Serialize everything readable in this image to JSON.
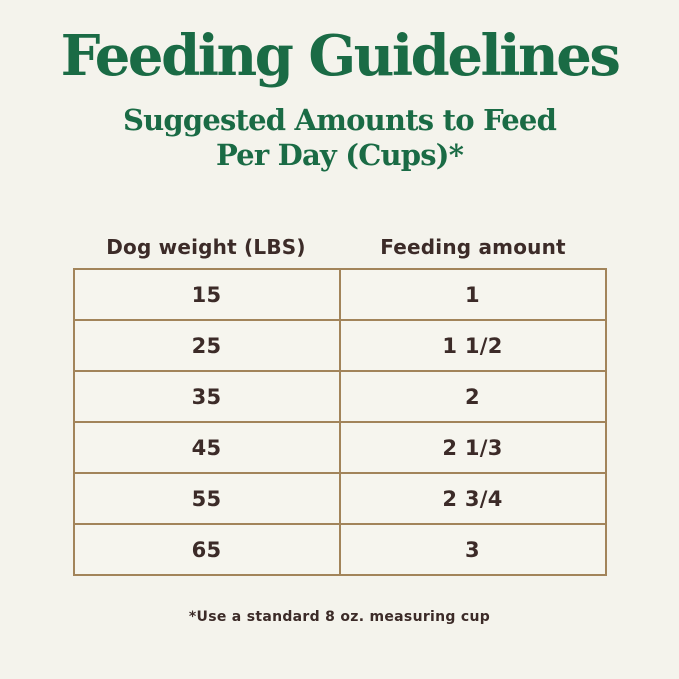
{
  "page": {
    "title": "Feeding Guidelines",
    "subtitle_lines": [
      "Suggested Amounts to Feed",
      "Per Day (Cups)*"
    ],
    "footnote": "*Use a standard 8 oz. measuring cup"
  },
  "chart_data": {
    "type": "table",
    "title": "Feeding Guidelines",
    "subtitle": "Suggested Amounts to Feed Per Day (Cups)*",
    "columns": [
      "Dog weight (LBS)",
      "Feeding amount"
    ],
    "rows": [
      [
        "15",
        "1"
      ],
      [
        "25",
        "1 1/2"
      ],
      [
        "35",
        "2"
      ],
      [
        "45",
        "2 1/3"
      ],
      [
        "55",
        "2 3/4"
      ],
      [
        "65",
        "3"
      ]
    ],
    "footnote": "*Use a standard 8 oz. measuring cup"
  },
  "colors": {
    "background": "#f4f3ec",
    "heading_green": "#1a6b45",
    "table_border_tan": "#a2845a",
    "text_dark_brown": "#3c2b28"
  }
}
